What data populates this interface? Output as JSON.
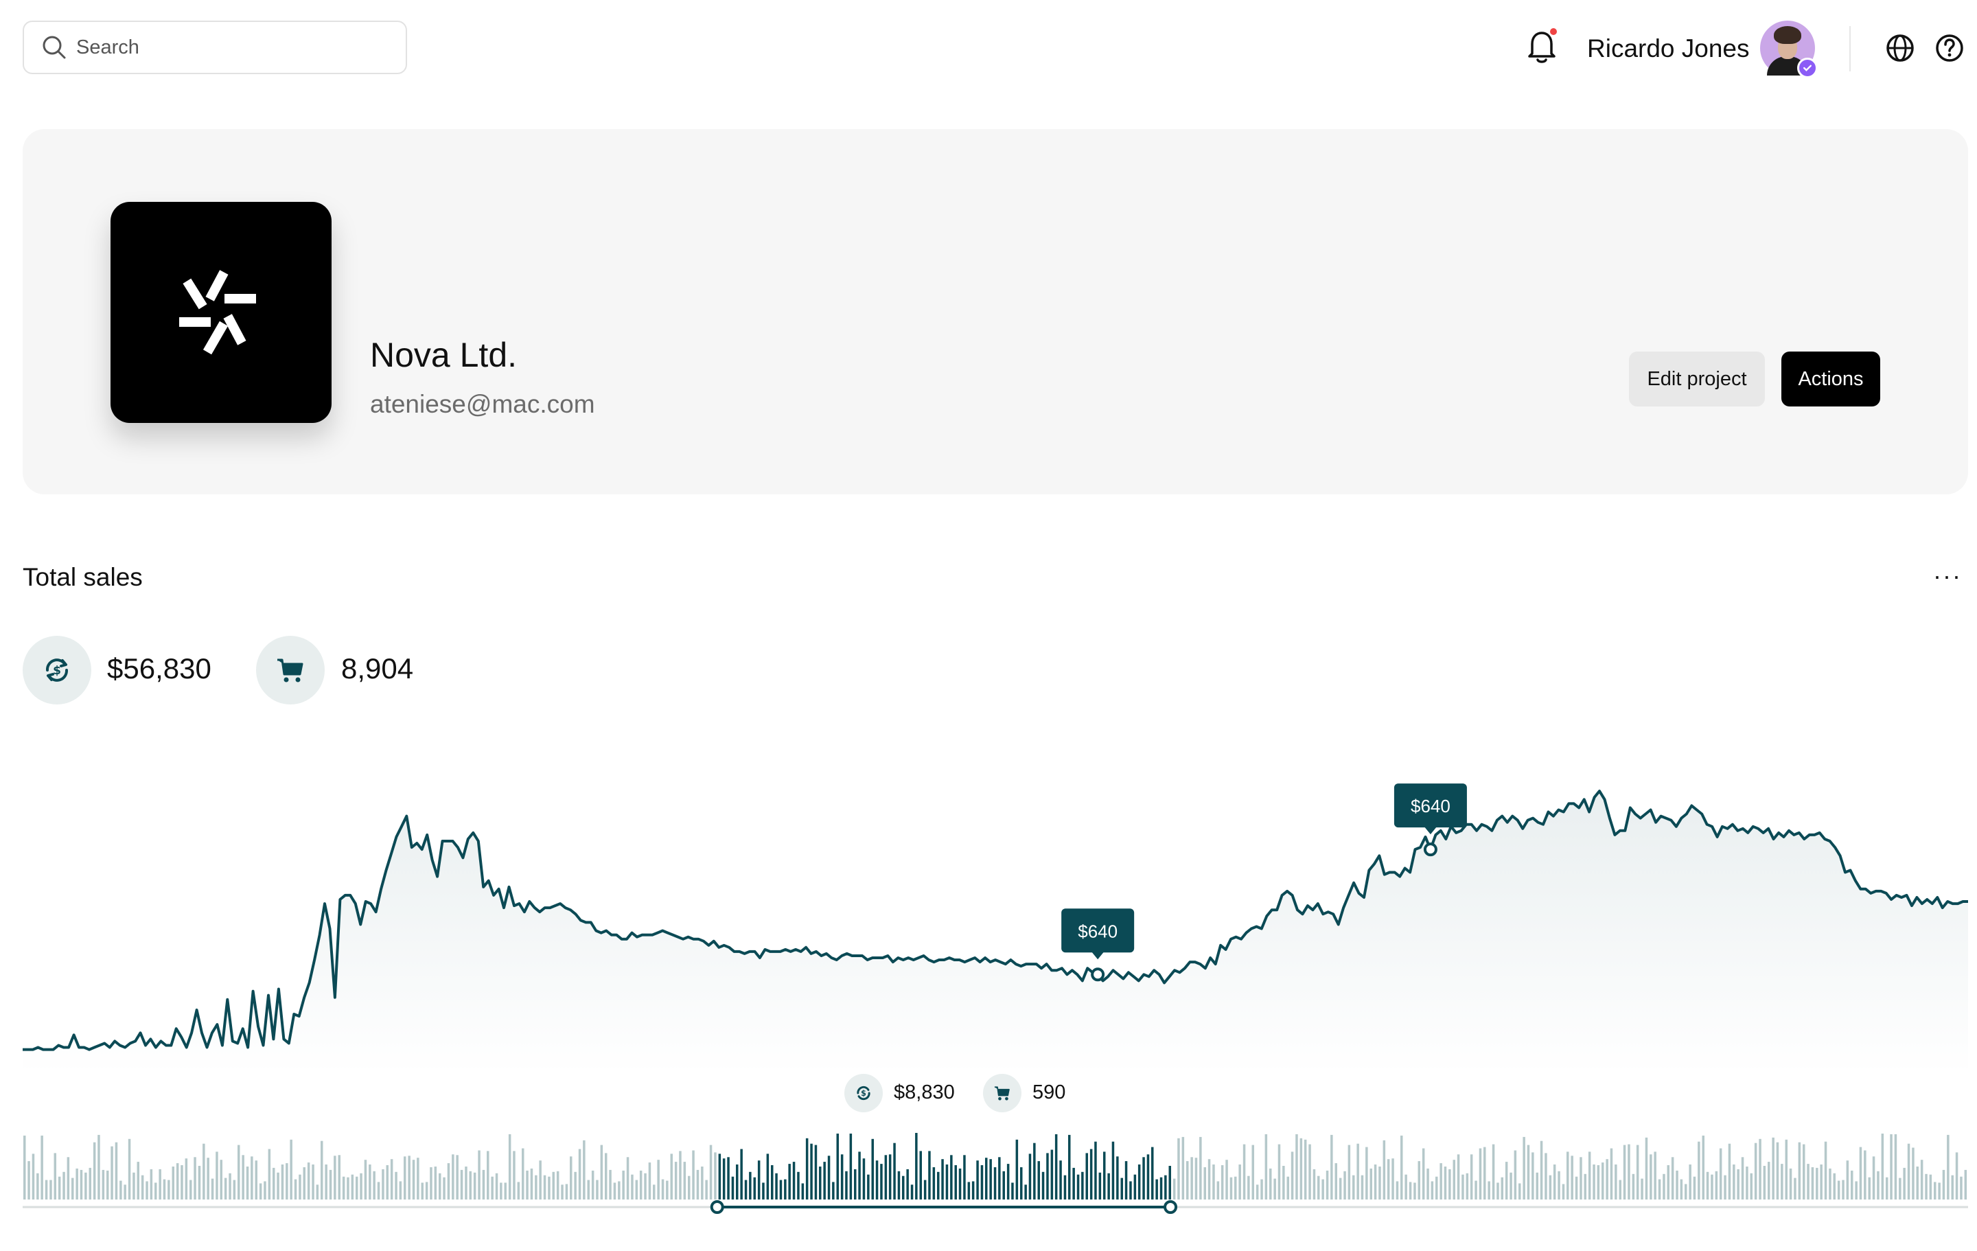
{
  "search": {
    "placeholder": "Search",
    "value": ""
  },
  "user": {
    "name": "Ricardo Jones",
    "has_notification": true,
    "verified": true
  },
  "icons": {
    "search": "search-icon",
    "notifications": "bell-icon",
    "language": "globe-icon",
    "help": "help-icon",
    "revenue": "currency-exchange-icon",
    "orders": "cart-icon",
    "more": "more-horizontal-icon"
  },
  "project": {
    "name": "Nova Ltd.",
    "email": "ateniese@mac.com",
    "edit_label": "Edit project",
    "actions_label": "Actions"
  },
  "sales": {
    "title": "Total sales",
    "more_label": "···",
    "revenue_total": "$56,830",
    "orders_total": "8,904",
    "selection_revenue": "$8,830",
    "selection_orders": "590"
  },
  "colors": {
    "accent": "#0b4a55",
    "bar_muted": "#b5c8ca",
    "notification_dot": "#ef4444",
    "verified": "#8b5cf6"
  },
  "chart_data": {
    "type": "line",
    "line_values": [
      12,
      12,
      12,
      13,
      12,
      12,
      12,
      14,
      13,
      13,
      19,
      13,
      13,
      12,
      13,
      14,
      15,
      13,
      16,
      14,
      13,
      15,
      16,
      20,
      14,
      17,
      13,
      16,
      14,
      14,
      22,
      18,
      13,
      20,
      31,
      20,
      13,
      20,
      24,
      14,
      36,
      16,
      15,
      22,
      13,
      40,
      23,
      14,
      38,
      17,
      41,
      17,
      15,
      29,
      28,
      37,
      44,
      55,
      67,
      82,
      70,
      37,
      84,
      86,
      86,
      82,
      72,
      83,
      82,
      78,
      89,
      98,
      106,
      114,
      119,
      124,
      109,
      111,
      108,
      115,
      103,
      95,
      112,
      112,
      112,
      109,
      104,
      113,
      116,
      112,
      90,
      93,
      86,
      89,
      80,
      90,
      81,
      82,
      78,
      83,
      80,
      78,
      80,
      80,
      81,
      82,
      80,
      79,
      77,
      74,
      73,
      73,
      69,
      68,
      69,
      67,
      67,
      65,
      65,
      68,
      66,
      67,
      67,
      67,
      68,
      69,
      68,
      67,
      66,
      65,
      66,
      65,
      65,
      64,
      62,
      64,
      61,
      62,
      61,
      59,
      59,
      58,
      59,
      59,
      56,
      60,
      59,
      59,
      59,
      60,
      59,
      60,
      59,
      61,
      58,
      59,
      57,
      58,
      56,
      55,
      57,
      58,
      57,
      57,
      57,
      55,
      56,
      56,
      56,
      57,
      54,
      56,
      55,
      56,
      55,
      56,
      57,
      55,
      54,
      55,
      55,
      56,
      55,
      55,
      54,
      55,
      56,
      54,
      56,
      54,
      55,
      54,
      53,
      55,
      53,
      52,
      53,
      53,
      53,
      51,
      53,
      50,
      50,
      51,
      48,
      50,
      48,
      45,
      51,
      49,
      48,
      45,
      47,
      50,
      48,
      46,
      49,
      47,
      45,
      48,
      47,
      50,
      48,
      44,
      47,
      50,
      49,
      51,
      54,
      54,
      53,
      51,
      56,
      53,
      62,
      60,
      65,
      66,
      65,
      68,
      70,
      71,
      70,
      76,
      79,
      79,
      86,
      88,
      86,
      79,
      77,
      81,
      79,
      82,
      77,
      78,
      77,
      72,
      80,
      86,
      92,
      87,
      85,
      98,
      101,
      105,
      96,
      97,
      97,
      95,
      99,
      97,
      108,
      109,
      114,
      108,
      115,
      117,
      113,
      119,
      116,
      117,
      120,
      120,
      117,
      120,
      119,
      117,
      122,
      124,
      121,
      124,
      122,
      118,
      122,
      123,
      121,
      120,
      126,
      124,
      127,
      126,
      130,
      130,
      128,
      132,
      126,
      133,
      136,
      132,
      123,
      115,
      117,
      117,
      128,
      125,
      123,
      125,
      127,
      121,
      124,
      123,
      122,
      119,
      123,
      125,
      129,
      127,
      125,
      120,
      119,
      114,
      119,
      118,
      120,
      117,
      118,
      116,
      119,
      118,
      116,
      118,
      113,
      116,
      114,
      117,
      115,
      116,
      113,
      115,
      115,
      116,
      113,
      112,
      109,
      105,
      97,
      98,
      93,
      89,
      89,
      87,
      88,
      88,
      87,
      84,
      86,
      85,
      86,
      81,
      85,
      82,
      84,
      82,
      85,
      80,
      83,
      82,
      82,
      83,
      83
    ],
    "peak_labels": [
      {
        "index": 210,
        "label": "$640"
      },
      {
        "index": 275,
        "label": "$640"
      }
    ],
    "bar_values": [
      0.95,
      0.57,
      0.68,
      0.39,
      0.95,
      0.29,
      0.29,
      0.69,
      0.34,
      0.41,
      0.63,
      0.32,
      0.46,
      0.44,
      0.4,
      0.47,
      0.85,
      0.96,
      0.44,
      0.43,
      0.79,
      0.85,
      0.28,
      0.22,
      0.9,
      0.4,
      0.56,
      0.36,
      0.27,
      0.45,
      0.25,
      0.45,
      0.3,
      0.29,
      0.49,
      0.54,
      0.51,
      0.61,
      0.29,
      0.63,
      0.5,
      0.83,
      0.62,
      0.31,
      0.71,
      0.59,
      0.32,
      0.39,
      0.29,
      0.81,
      0.66,
      0.49,
      0.64,
      0.58,
      0.24,
      0.27,
      0.75,
      0.47,
      0.4,
      0.52,
      0.54,
      0.89,
      0.3,
      0.37,
      0.48,
      0.55,
      0.52,
      0.22,
      0.87,
      0.52,
      0.44,
      0.65,
      0.66,
      0.34,
      0.33,
      0.37,
      0.34,
      0.39,
      0.59,
      0.52,
      0.42,
      0.26,
      0.45,
      0.51,
      0.6,
      0.41,
      0.27,
      0.64,
      0.65,
      0.59,
      0.62,
      0.25,
      0.26,
      0.48,
      0.49,
      0.39,
      0.33,
      0.54,
      0.67,
      0.66,
      0.44,
      0.49,
      0.42,
      0.4,
      0.73,
      0.44,
      0.72,
      0.34,
      0.39,
      0.25,
      0.25,
      0.97,
      0.72,
      0.26,
      0.76,
      0.43,
      0.46,
      0.36,
      0.58,
      0.36,
      0.34,
      0.41,
      0.42,
      0.22,
      0.23,
      0.64,
      0.41,
      0.75,
      0.88,
      0.29,
      0.43,
      0.29,
      0.81,
      0.69,
      0.44,
      0.25,
      0.27,
      0.43,
      0.63,
      0.37,
      0.29,
      0.43,
      0.39,
      0.55,
      0.22,
      0.59,
      0.3,
      0.28,
      0.68,
      0.56,
      0.72,
      0.56,
      0.35,
      0.73,
      0.44,
      0.49,
      0.29,
      0.81,
      0.7,
      0.68,
      0.61,
      0.63,
      0.34,
      0.52,
      0.75,
      0.29,
      0.41,
      0.33,
      0.58,
      0.25,
      0.68,
      0.51,
      0.39,
      0.29,
      0.3,
      0.53,
      0.56,
      0.41,
      0.24,
      0.91,
      0.83,
      0.81,
      0.49,
      0.56,
      0.65,
      0.26,
      0.98,
      0.67,
      0.42,
      0.98,
      0.45,
      0.71,
      0.61,
      0.37,
      0.9,
      0.58,
      0.53,
      0.66,
      0.67,
      0.84,
      0.42,
      0.35,
      0.45,
      0.22,
      0.99,
      0.72,
      0.29,
      0.72,
      0.48,
      0.41,
      0.6,
      0.52,
      0.66,
      0.51,
      0.46,
      0.66,
      0.26,
      0.27,
      0.58,
      0.51,
      0.62,
      0.6,
      0.48,
      0.63,
      0.42,
      0.53,
      0.25,
      0.89,
      0.48,
      0.22,
      0.68,
      0.84,
      0.57,
      0.41,
      0.69,
      0.74,
      0.97,
      0.58,
      0.36,
      0.96,
      0.47,
      0.37,
      0.41,
      0.69,
      0.75,
      0.86,
      0.4,
      0.71,
      0.39,
      0.86,
      0.64,
      0.32,
      0.57,
      0.27,
      0.37,
      0.52,
      0.63,
      0.67,
      0.78,
      0.3,
      0.33,
      0.36,
      0.5,
      0.31,
      0.91,
      0.93,
      0.57,
      0.63,
      0.62,
      0.93,
      0.48,
      0.6,
      0.52,
      0.27,
      0.51,
      0.59,
      0.33,
      0.34,
      0.52,
      0.82,
      0.35,
      0.81,
      0.22,
      0.3,
      0.97,
      0.46,
      0.31,
      0.82,
      0.5,
      0.34,
      0.71,
      0.97,
      0.91,
      0.89,
      0.82,
      0.45,
      0.35,
      0.3,
      0.43,
      0.96,
      0.54,
      0.32,
      0.42,
      0.81,
      0.36,
      0.83,
      0.36,
      0.78,
      0.46,
      0.52,
      0.49,
      0.88,
      0.6,
      0.61,
      0.27,
      0.95,
      0.37,
      0.26,
      0.25,
      0.57,
      0.76,
      0.46,
      0.27,
      0.34,
      0.54,
      0.49,
      0.45,
      0.59,
      0.67,
      0.37,
      0.39,
      0.67,
      0.28,
      0.76,
      0.78,
      0.27,
      0.82,
      0.25,
      0.33,
      0.56,
      0.4,
      0.73,
      0.24,
      0.93,
      0.81,
      0.7,
      0.4,
      0.87,
      0.69,
      0.36,
      0.52,
      0.42,
      0.23,
      0.71,
      0.65,
      0.34,
      0.63,
      0.38,
      0.71,
      0.52,
      0.51,
      0.55,
      0.6,
      0.76,
      0.52,
      0.29,
      0.81,
      0.82,
      0.38,
      0.81,
      0.31,
      0.92,
      0.67,
      0.71,
      0.3,
      0.38,
      0.51,
      0.63,
      0.43,
      0.3,
      0.23,
      0.52,
      0.34,
      0.86,
      0.95,
      0.41,
      0.37,
      0.42,
      0.76,
      0.36,
      0.83,
      0.52,
      0.45,
      0.63,
      0.49,
      0.39,
      0.84,
      0.9,
      0.5,
      0.56,
      0.92,
      0.85,
      0.53,
      0.89,
      0.46,
      0.32,
      0.85,
      0.82,
      0.53,
      0.48,
      0.47,
      0.52,
      0.86,
      0.46,
      0.39,
      0.28,
      0.29,
      0.58,
      0.43,
      0.27,
      0.78,
      0.73,
      0.33,
      0.64,
      0.42,
      0.98,
      0.33,
      0.97,
      0.97,
      0.32,
      0.47,
      0.83,
      0.77,
      0.49,
      0.59,
      0.38,
      0.37,
      0.26,
      0.25,
      0.44,
      0.96,
      0.36,
      0.7,
      0.34,
      0.44
    ],
    "selection": {
      "start_fraction": 0.357,
      "end_fraction": 0.59
    },
    "title": "Total sales"
  }
}
